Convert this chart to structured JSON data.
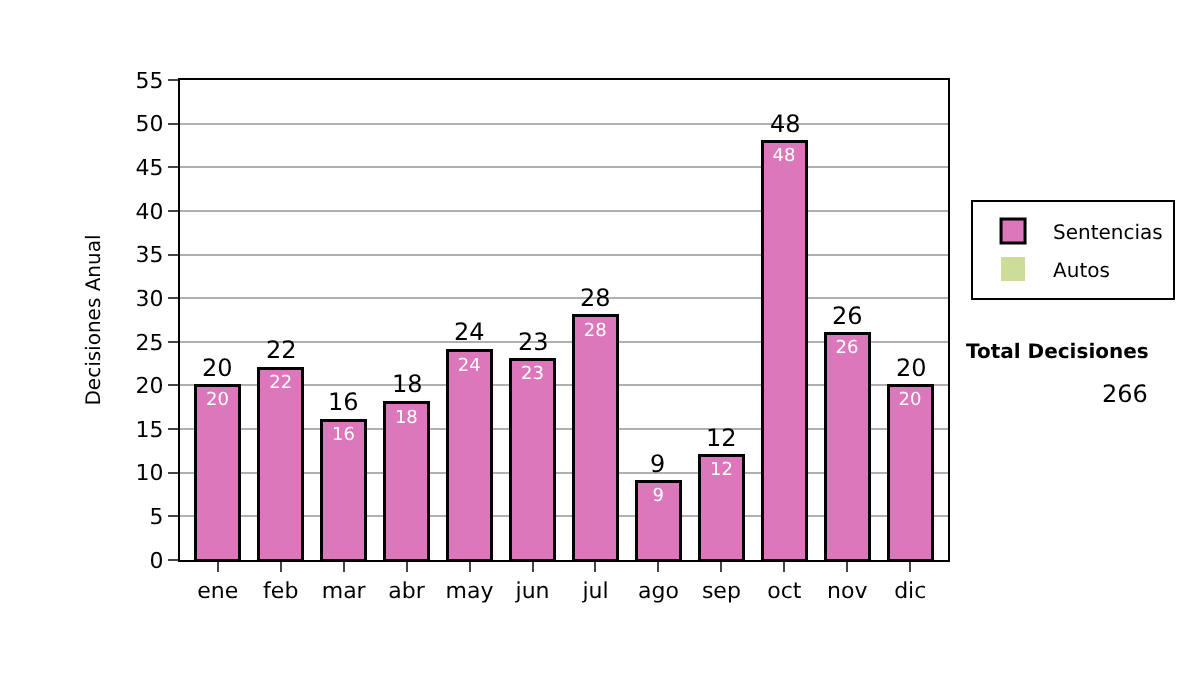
{
  "chart_data": {
    "type": "bar",
    "stacked": true,
    "ylabel": "Decisiones Anual",
    "categories": [
      "ene",
      "feb",
      "mar",
      "abr",
      "may",
      "jun",
      "jul",
      "ago",
      "sep",
      "oct",
      "nov",
      "dic"
    ],
    "series": [
      {
        "name": "Sentencias",
        "color": "#dd77bb",
        "values": [
          20,
          22,
          16,
          18,
          24,
          23,
          28,
          9,
          12,
          48,
          26,
          20
        ],
        "value_labels": [
          "20",
          "22",
          "16",
          "18",
          "24",
          "23",
          "28",
          "9",
          "12",
          "48",
          "26",
          "20"
        ]
      },
      {
        "name": "Autos",
        "color": "#ccdd99",
        "values": [
          0,
          0,
          0,
          0,
          0,
          0,
          0,
          0,
          0,
          0,
          0,
          0
        ]
      }
    ],
    "totals": [
      "20",
      "22",
      "16",
      "18",
      "24",
      "23",
      "28",
      "9",
      "12",
      "48",
      "26",
      "20"
    ],
    "ylim": [
      0,
      55
    ],
    "yticks": [
      0,
      5,
      10,
      15,
      20,
      25,
      30,
      35,
      40,
      45,
      50,
      55
    ],
    "grid": "y",
    "legend": "right",
    "annotations": [
      "Total Decisiones",
      "266"
    ]
  }
}
